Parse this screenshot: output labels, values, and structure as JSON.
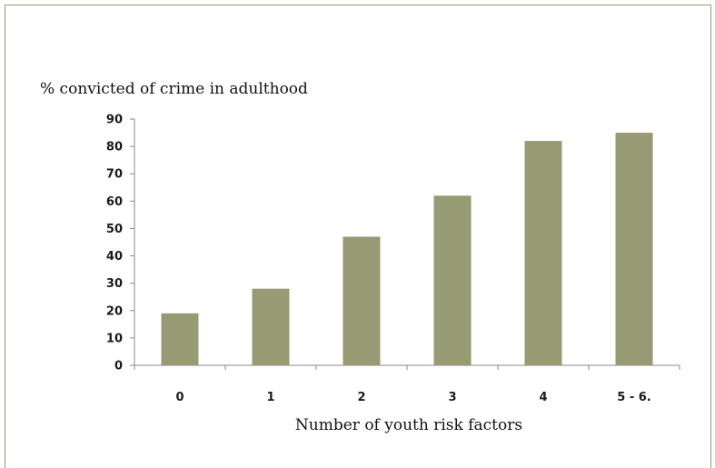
{
  "chart_data": {
    "type": "bar",
    "title": "",
    "ylabel": "% convicted of crime in adulthood",
    "xlabel": "Number of youth risk factors",
    "categories": [
      "0",
      "1",
      "2",
      "3",
      "4",
      "5 - 6."
    ],
    "values": [
      19,
      28,
      47,
      62,
      82,
      85
    ],
    "ylim": [
      0,
      90
    ],
    "yticks": [
      "0",
      "10",
      "20",
      "30",
      "40",
      "50",
      "60",
      "70",
      "80",
      "90"
    ],
    "bar_color": "#969b73",
    "grid": false,
    "legend": false
  }
}
